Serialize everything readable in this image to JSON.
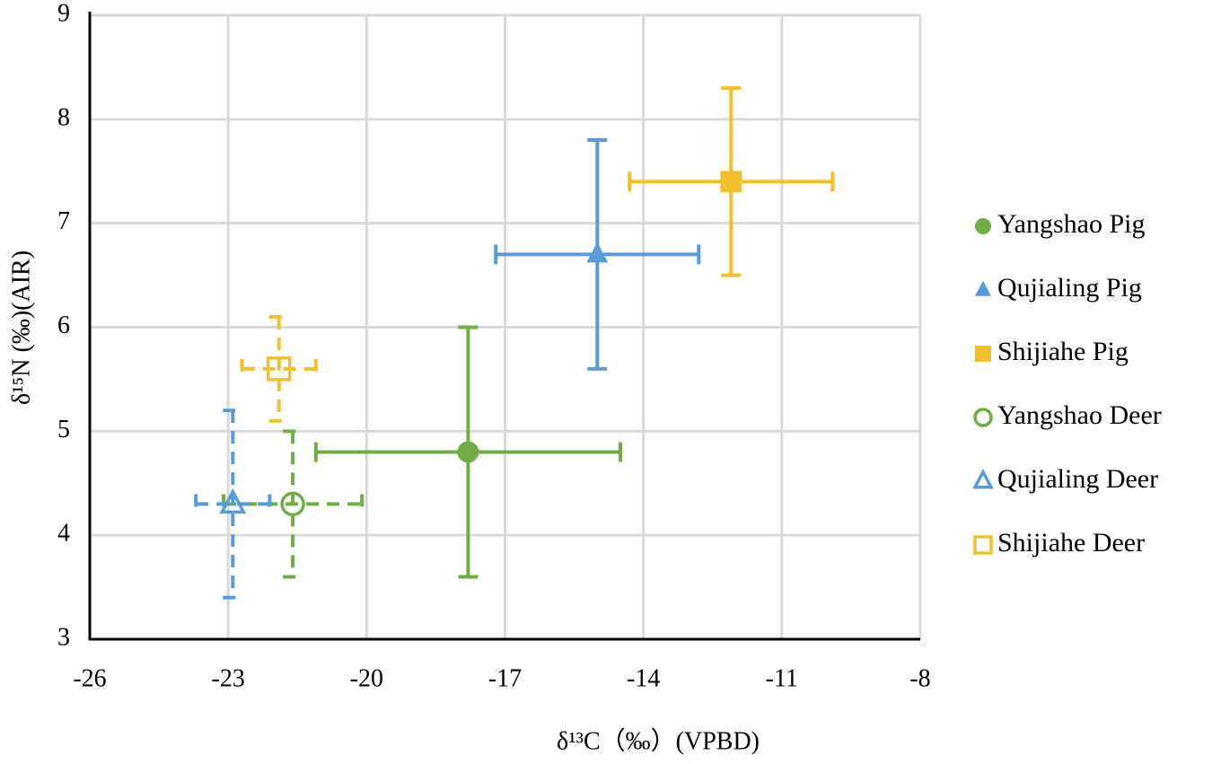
{
  "chart_data": {
    "type": "scatter",
    "xlabel": "δ¹³C（‰）(VPBD)",
    "ylabel": "δ¹⁵N (‰)(AIR)",
    "xlim": [
      -26,
      -8
    ],
    "xticks": [
      -26,
      -23,
      -20,
      -17,
      -14,
      -11,
      -8
    ],
    "ylim": [
      3,
      9
    ],
    "yticks": [
      3,
      4,
      5,
      6,
      7,
      8,
      9
    ],
    "grid": true,
    "legend": "right",
    "series": [
      {
        "name": "Yangshao Pig",
        "color": "#70ad47",
        "marker": "circle",
        "filled": true,
        "dashed": false,
        "x": [
          -17.8
        ],
        "values": [
          4.8
        ],
        "xerr": [
          3.3
        ],
        "yerr": [
          1.2
        ]
      },
      {
        "name": "Qujialing Pig",
        "color": "#5b9bd5",
        "marker": "triangle",
        "filled": true,
        "dashed": false,
        "x": [
          -15.0
        ],
        "values": [
          6.7
        ],
        "xerr": [
          2.2
        ],
        "yerr": [
          1.1
        ]
      },
      {
        "name": "Shijiahe Pig",
        "color": "#f2bf2e",
        "marker": "square",
        "filled": true,
        "dashed": false,
        "x": [
          -12.1
        ],
        "values": [
          7.4
        ],
        "xerr": [
          2.2
        ],
        "yerr": [
          0.9
        ]
      },
      {
        "name": "Yangshao Deer",
        "color": "#70ad47",
        "marker": "circle",
        "filled": false,
        "dashed": true,
        "x": [
          -21.6
        ],
        "values": [
          4.3
        ],
        "xerr": [
          1.5
        ],
        "yerr": [
          0.7
        ]
      },
      {
        "name": "Qujialing Deer",
        "color": "#5b9bd5",
        "marker": "triangle",
        "filled": false,
        "dashed": true,
        "x": [
          -22.9
        ],
        "values": [
          4.3
        ],
        "xerr": [
          0.8
        ],
        "yerr": [
          0.9
        ]
      },
      {
        "name": "Shijiahe Deer",
        "color": "#f2bf2e",
        "marker": "square",
        "filled": false,
        "dashed": true,
        "x": [
          -21.9
        ],
        "values": [
          5.6
        ],
        "xerr": [
          0.8
        ],
        "yerr": [
          0.5
        ]
      }
    ]
  }
}
